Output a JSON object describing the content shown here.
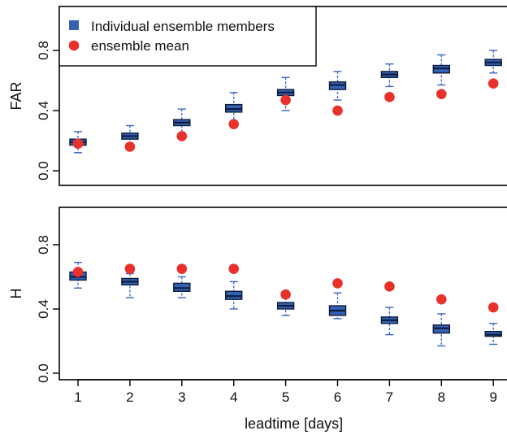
{
  "legend": {
    "members_label": "Individual ensemble members",
    "mean_label": "ensemble mean"
  },
  "colors": {
    "box_fill": "#3461b5",
    "box_edge": "#0d1b3a",
    "whisker": "#3b63c4",
    "mean": "#e8312a",
    "axis": "#000000"
  },
  "xlabel": "leadtime [days]",
  "chart_data": [
    {
      "type": "box",
      "ylabel": "FAR",
      "ylim": [
        0.0,
        1.0
      ],
      "yticks": [
        0.0,
        0.4,
        0.8
      ],
      "ytick_labels": [
        "0.0",
        "0.4",
        "0.8"
      ],
      "x": [
        1,
        2,
        3,
        4,
        5,
        6,
        7,
        8,
        9
      ],
      "xtick_labels": [
        "1",
        "2",
        "3",
        "4",
        "5",
        "6",
        "7",
        "8",
        "9"
      ],
      "legend": "top-left",
      "series": [
        {
          "name": "Individual ensemble members",
          "min": [
            0.12,
            0.18,
            0.25,
            0.32,
            0.4,
            0.47,
            0.56,
            0.57,
            0.65
          ],
          "q1": [
            0.17,
            0.21,
            0.3,
            0.39,
            0.5,
            0.54,
            0.62,
            0.65,
            0.7
          ],
          "median": [
            0.19,
            0.23,
            0.32,
            0.41,
            0.52,
            0.57,
            0.64,
            0.68,
            0.72
          ],
          "q3": [
            0.21,
            0.25,
            0.34,
            0.44,
            0.54,
            0.59,
            0.66,
            0.7,
            0.74
          ],
          "max": [
            0.26,
            0.3,
            0.41,
            0.52,
            0.62,
            0.66,
            0.71,
            0.77,
            0.8
          ]
        },
        {
          "name": "ensemble mean",
          "values": [
            0.18,
            0.16,
            0.23,
            0.31,
            0.47,
            0.4,
            0.49,
            0.51,
            0.58
          ]
        }
      ]
    },
    {
      "type": "box",
      "ylabel": "H",
      "ylim": [
        0.0,
        1.0
      ],
      "yticks": [
        0.0,
        0.4,
        0.8
      ],
      "ytick_labels": [
        "0.0",
        "0.4",
        "0.8"
      ],
      "x": [
        1,
        2,
        3,
        4,
        5,
        6,
        7,
        8,
        9
      ],
      "xtick_labels": [
        "1",
        "2",
        "3",
        "4",
        "5",
        "6",
        "7",
        "8",
        "9"
      ],
      "series": [
        {
          "name": "Individual ensemble members",
          "min": [
            0.53,
            0.47,
            0.47,
            0.4,
            0.36,
            0.34,
            0.24,
            0.17,
            0.18
          ],
          "q1": [
            0.58,
            0.55,
            0.51,
            0.46,
            0.4,
            0.36,
            0.31,
            0.25,
            0.23
          ],
          "median": [
            0.6,
            0.57,
            0.53,
            0.48,
            0.42,
            0.39,
            0.33,
            0.28,
            0.24
          ],
          "q3": [
            0.63,
            0.59,
            0.56,
            0.51,
            0.44,
            0.42,
            0.35,
            0.3,
            0.26
          ],
          "max": [
            0.69,
            0.62,
            0.6,
            0.57,
            0.47,
            0.5,
            0.41,
            0.37,
            0.31
          ]
        },
        {
          "name": "ensemble mean",
          "values": [
            0.63,
            0.65,
            0.65,
            0.65,
            0.49,
            0.56,
            0.54,
            0.46,
            0.41
          ]
        }
      ]
    }
  ]
}
